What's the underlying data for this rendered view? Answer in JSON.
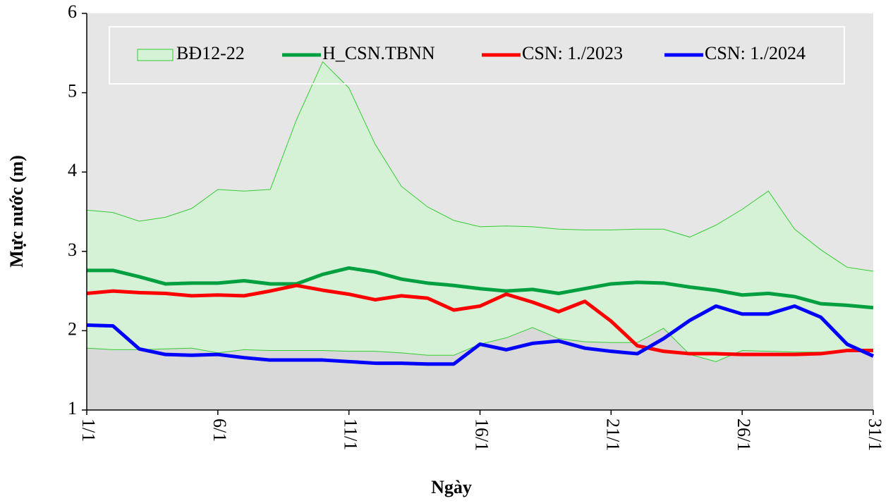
{
  "chart_data": {
    "type": "line",
    "x_label": "Ngày",
    "y_label": "Mực nước (m)",
    "categories": [
      "1/1",
      null,
      null,
      null,
      null,
      "6/1",
      null,
      null,
      null,
      null,
      "11/1",
      null,
      null,
      null,
      null,
      "16/1",
      null,
      null,
      null,
      null,
      "21/1",
      null,
      null,
      null,
      null,
      "26/1",
      null,
      null,
      null,
      null,
      "31/1"
    ],
    "ylim": [
      1,
      6
    ],
    "yticks": [
      1,
      2,
      3,
      4,
      5,
      6
    ],
    "legend": "top",
    "band": {
      "name": "BĐ12-22",
      "color": "#33cc33",
      "fill": "#d6f2d6",
      "upper": [
        3.52,
        3.49,
        3.38,
        3.43,
        3.54,
        3.78,
        3.76,
        3.78,
        4.66,
        5.39,
        5.06,
        4.35,
        3.82,
        3.56,
        3.39,
        3.31,
        3.32,
        3.31,
        3.28,
        3.27,
        3.27,
        3.28,
        3.28,
        3.18,
        3.33,
        3.53,
        3.76,
        3.28,
        3.02,
        2.8,
        2.75
      ],
      "lower": [
        1.78,
        1.76,
        1.76,
        1.77,
        1.78,
        1.72,
        1.76,
        1.75,
        1.75,
        1.75,
        1.74,
        1.74,
        1.72,
        1.69,
        1.69,
        1.83,
        1.91,
        2.04,
        1.9,
        1.86,
        1.85,
        1.85,
        2.03,
        1.7,
        1.61,
        1.75,
        1.74,
        1.73,
        1.73,
        1.76,
        1.75
      ]
    },
    "series": [
      {
        "name": "H_CSN.TBNN",
        "color": "#00a040",
        "values": [
          2.76,
          2.76,
          2.68,
          2.59,
          2.6,
          2.6,
          2.63,
          2.59,
          2.59,
          2.71,
          2.79,
          2.74,
          2.65,
          2.6,
          2.57,
          2.53,
          2.5,
          2.52,
          2.47,
          2.53,
          2.59,
          2.61,
          2.6,
          2.55,
          2.51,
          2.45,
          2.47,
          2.43,
          2.34,
          2.32,
          2.29
        ]
      },
      {
        "name": "CSN: 1./2023",
        "color": "#ff0000",
        "values": [
          2.47,
          2.5,
          2.48,
          2.47,
          2.44,
          2.45,
          2.44,
          2.5,
          2.57,
          2.51,
          2.46,
          2.39,
          2.44,
          2.41,
          2.26,
          2.31,
          2.46,
          2.36,
          2.24,
          2.37,
          2.12,
          1.81,
          1.74,
          1.71,
          1.71,
          1.7,
          1.7,
          1.7,
          1.71,
          1.75,
          1.75
        ]
      },
      {
        "name": "CSN: 1./2024",
        "color": "#0000ff",
        "values": [
          2.07,
          2.06,
          1.77,
          1.7,
          1.69,
          1.7,
          1.66,
          1.63,
          1.63,
          1.63,
          1.61,
          1.59,
          1.59,
          1.58,
          1.58,
          1.83,
          1.76,
          1.84,
          1.87,
          1.78,
          1.74,
          1.71,
          1.9,
          2.13,
          2.31,
          2.21,
          2.21,
          2.31,
          2.17,
          1.83,
          1.68
        ]
      }
    ]
  }
}
